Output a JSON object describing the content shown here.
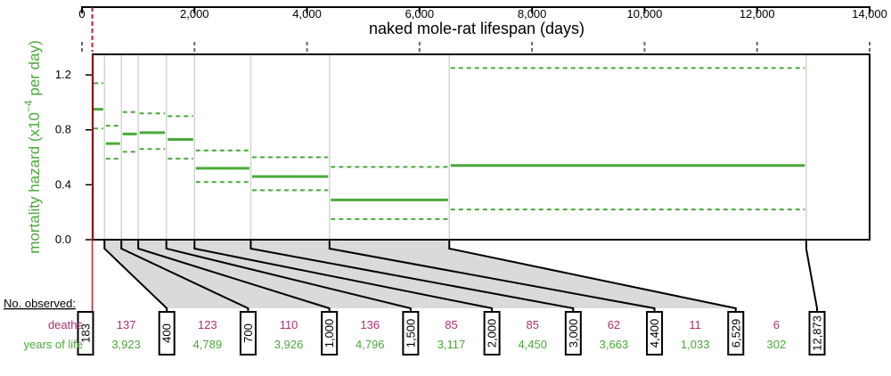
{
  "chart_data": {
    "type": "step",
    "xlabel": "naked mole-rat lifespan (days)",
    "ylabel_main": "mortality hazard (x10",
    "ylabel_sup": "−4",
    "ylabel_tail": " per day)",
    "xlim": [
      0,
      14000
    ],
    "ylim": [
      0,
      1.35
    ],
    "x_ticks": [
      "0",
      "2,000",
      "4,000",
      "6,000",
      "8,000",
      "10,000",
      "12,000",
      "14,000"
    ],
    "x_tick_values": [
      0,
      2000,
      4000,
      6000,
      8000,
      10000,
      12000,
      14000
    ],
    "y_ticks": [
      "0.0",
      "0.4",
      "0.8",
      "1.2"
    ],
    "y_tick_values": [
      0,
      0.4,
      0.8,
      1.2
    ],
    "colors": {
      "hazard": "#4aa83a",
      "deaths": "#b0306f",
      "years": "#4aa83a",
      "start_line": "#c0202a",
      "shade": "#dadada"
    },
    "intervals": [
      {
        "start": 183,
        "end": 400,
        "hazard": 0.95,
        "lower": 0.81,
        "upper": 1.14
      },
      {
        "start": 400,
        "end": 700,
        "hazard": 0.7,
        "lower": 0.59,
        "upper": 0.83
      },
      {
        "start": 700,
        "end": 1000,
        "hazard": 0.77,
        "lower": 0.64,
        "upper": 0.93
      },
      {
        "start": 1000,
        "end": 1500,
        "hazard": 0.78,
        "lower": 0.66,
        "upper": 0.92
      },
      {
        "start": 1500,
        "end": 2000,
        "hazard": 0.73,
        "lower": 0.59,
        "upper": 0.9
      },
      {
        "start": 2000,
        "end": 3000,
        "hazard": 0.52,
        "lower": 0.42,
        "upper": 0.65
      },
      {
        "start": 3000,
        "end": 4400,
        "hazard": 0.46,
        "lower": 0.36,
        "upper": 0.6
      },
      {
        "start": 4400,
        "end": 6529,
        "hazard": 0.29,
        "lower": 0.15,
        "upper": 0.53
      },
      {
        "start": 6529,
        "end": 12873,
        "hazard": 0.54,
        "lower": 0.22,
        "upper": 1.25
      }
    ],
    "boundaries": [
      "183",
      "400",
      "700",
      "1,000",
      "1,500",
      "2,000",
      "3,000",
      "4,400",
      "6,529",
      "12,873"
    ],
    "boundary_values": [
      183,
      400,
      700,
      1000,
      1500,
      2000,
      3000,
      4400,
      6529,
      12873
    ],
    "table": {
      "title": "No. observed:",
      "deaths_label": "deaths",
      "years_label": "years of life",
      "deaths": [
        "137",
        "123",
        "110",
        "136",
        "85",
        "85",
        "62",
        "11",
        "6"
      ],
      "years_of_life": [
        "3,923",
        "4,789",
        "3,926",
        "4,796",
        "3,117",
        "4,450",
        "3,663",
        "1,033",
        "302"
      ]
    }
  }
}
